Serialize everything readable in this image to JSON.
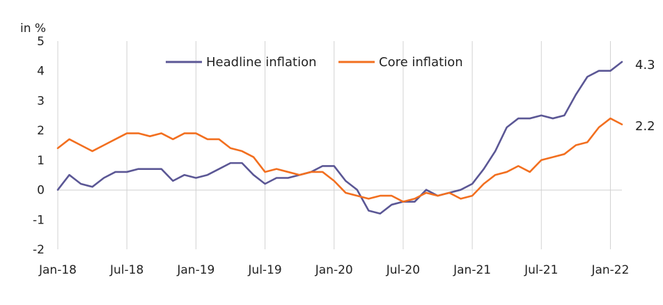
{
  "chart_data": {
    "type": "line",
    "ylabel": "in %",
    "ylim": [
      -2,
      5
    ],
    "yticks": [
      "5",
      "4",
      "3",
      "2",
      "1",
      "0",
      "-1",
      "-2"
    ],
    "xticks": [
      "Jan-18",
      "Jul-18",
      "Jan-19",
      "Jul-19",
      "Jan-20",
      "Jul-20",
      "Jan-21",
      "Jul-21",
      "Jan-22"
    ],
    "x": [
      "2018-01",
      "2018-02",
      "2018-03",
      "2018-04",
      "2018-05",
      "2018-06",
      "2018-07",
      "2018-08",
      "2018-09",
      "2018-10",
      "2018-11",
      "2018-12",
      "2019-01",
      "2019-02",
      "2019-03",
      "2019-04",
      "2019-05",
      "2019-06",
      "2019-07",
      "2019-08",
      "2019-09",
      "2019-10",
      "2019-11",
      "2019-12",
      "2020-01",
      "2020-02",
      "2020-03",
      "2020-04",
      "2020-05",
      "2020-06",
      "2020-07",
      "2020-08",
      "2020-09",
      "2020-10",
      "2020-11",
      "2020-12",
      "2021-01",
      "2021-02",
      "2021-03",
      "2021-04",
      "2021-05",
      "2021-06",
      "2021-07",
      "2021-08",
      "2021-09",
      "2021-10",
      "2021-11",
      "2021-12",
      "2022-01",
      "2022-02"
    ],
    "grid": "vertical",
    "legend_position": "top",
    "series": [
      {
        "name": "Headline inflation",
        "color": "#5b5795",
        "end_label": "4.3",
        "values": [
          0.0,
          0.5,
          0.2,
          0.1,
          0.4,
          0.6,
          0.6,
          0.7,
          0.7,
          0.7,
          0.3,
          0.5,
          0.4,
          0.5,
          0.7,
          0.9,
          0.9,
          0.5,
          0.2,
          0.4,
          0.4,
          0.5,
          0.6,
          0.8,
          0.8,
          0.3,
          0.0,
          -0.7,
          -0.8,
          -0.5,
          -0.4,
          -0.4,
          0.0,
          -0.2,
          -0.1,
          0.0,
          0.2,
          0.7,
          1.3,
          2.1,
          2.4,
          2.4,
          2.5,
          2.4,
          2.5,
          3.2,
          3.8,
          4.0,
          4.0,
          4.3
        ]
      },
      {
        "name": "Core inflation",
        "color": "#f26f1f",
        "end_label": "2.2",
        "values": [
          1.4,
          1.7,
          1.5,
          1.3,
          1.5,
          1.7,
          1.9,
          1.9,
          1.8,
          1.9,
          1.7,
          1.9,
          1.9,
          1.7,
          1.7,
          1.4,
          1.3,
          1.1,
          0.6,
          0.7,
          0.6,
          0.5,
          0.6,
          0.6,
          0.3,
          -0.1,
          -0.2,
          -0.3,
          -0.2,
          -0.2,
          -0.4,
          -0.3,
          -0.1,
          -0.2,
          -0.1,
          -0.3,
          -0.2,
          0.2,
          0.5,
          0.6,
          0.8,
          0.6,
          1.0,
          1.1,
          1.2,
          1.5,
          1.6,
          2.1,
          2.4,
          2.2
        ]
      }
    ]
  }
}
